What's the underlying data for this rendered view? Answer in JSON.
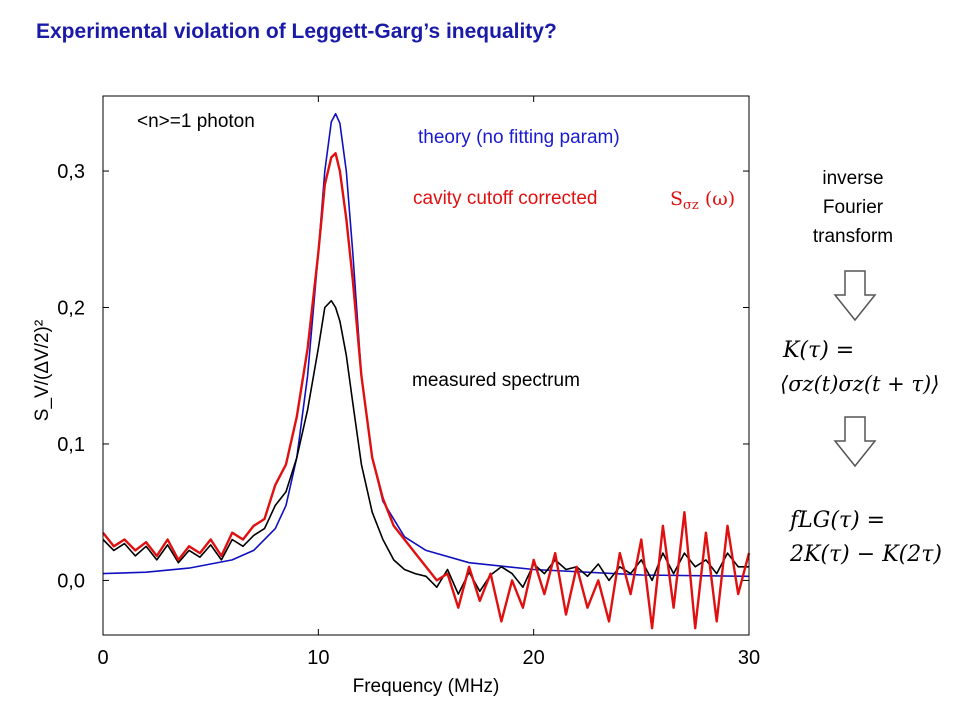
{
  "title": "Experimental violation of Leggett-Garg’s inequality?",
  "annotations": {
    "photon": "<n>=1 photon",
    "theory": "theory (no fitting param)",
    "cavity": "cavity cutoff corrected",
    "measured": "measured spectrum",
    "spectrum_symbol": "S",
    "spectrum_sub": "σz",
    "spectrum_arg": "(ω)"
  },
  "side_text": {
    "line1": "inverse",
    "line2": "Fourier",
    "line3": "transform"
  },
  "formulas": {
    "k_lhs": "K(τ) =",
    "k_rhs": "⟨σz(t)σz(t + τ)⟩",
    "f_lhs": "fLG(τ) =",
    "f_rhs": "2K(τ) − K(2τ)"
  },
  "colors": {
    "title": "#1a1aa8",
    "theory": "#1010c0",
    "cavity": "#e01010",
    "measured": "#000000"
  },
  "chart_data": {
    "type": "line",
    "xlabel": "Frequency (MHz)",
    "ylabel": "S_V/(ΔV/2)²",
    "xlim": [
      0,
      30
    ],
    "ylim": [
      -0.04,
      0.355
    ],
    "xticks": [
      0,
      10,
      20,
      30
    ],
    "yticks": [
      0.0,
      0.1,
      0.2,
      0.3
    ],
    "xtick_labels": [
      "0",
      "10",
      "20",
      "30"
    ],
    "ytick_labels": [
      "0,0",
      "0,1",
      "0,2",
      "0,3"
    ],
    "series": [
      {
        "name": "theory (no fitting param)",
        "color": "#1010c0",
        "x": [
          0,
          2,
          4,
          6,
          7,
          8,
          8.5,
          9,
          9.5,
          10,
          10.3,
          10.6,
          10.8,
          11,
          11.3,
          11.6,
          12,
          12.5,
          13,
          14,
          15,
          17,
          20,
          25,
          30
        ],
        "y": [
          0.005,
          0.006,
          0.009,
          0.015,
          0.022,
          0.038,
          0.055,
          0.09,
          0.15,
          0.24,
          0.3,
          0.336,
          0.342,
          0.335,
          0.3,
          0.24,
          0.15,
          0.09,
          0.058,
          0.032,
          0.022,
          0.013,
          0.008,
          0.004,
          0.003
        ]
      },
      {
        "name": "cavity cutoff corrected",
        "color": "#e01010",
        "x": [
          0,
          0.5,
          1,
          1.5,
          2,
          2.5,
          3,
          3.5,
          4,
          4.5,
          5,
          5.5,
          6,
          6.5,
          7,
          7.5,
          8,
          8.5,
          9,
          9.5,
          10,
          10.3,
          10.6,
          10.8,
          11,
          11.3,
          11.6,
          12,
          12.5,
          13,
          13.5,
          14,
          14.5,
          15,
          15.5,
          16,
          16.5,
          17,
          17.5,
          18,
          18.5,
          19,
          19.5,
          20,
          20.5,
          21,
          21.5,
          22,
          22.5,
          23,
          23.5,
          24,
          24.5,
          25,
          25.5,
          26,
          26.5,
          27,
          27.5,
          28,
          28.5,
          29,
          29.5,
          30
        ],
        "y": [
          0.035,
          0.025,
          0.03,
          0.022,
          0.028,
          0.018,
          0.03,
          0.015,
          0.025,
          0.02,
          0.03,
          0.018,
          0.035,
          0.03,
          0.04,
          0.045,
          0.07,
          0.085,
          0.12,
          0.17,
          0.24,
          0.29,
          0.31,
          0.313,
          0.3,
          0.265,
          0.22,
          0.15,
          0.09,
          0.06,
          0.04,
          0.03,
          0.02,
          0.01,
          0.0,
          0.005,
          -0.02,
          0.01,
          -0.015,
          0.005,
          -0.03,
          0.0,
          -0.02,
          0.015,
          -0.01,
          0.02,
          -0.025,
          0.01,
          -0.02,
          0.0,
          -0.03,
          0.02,
          -0.01,
          0.03,
          -0.035,
          0.04,
          -0.02,
          0.05,
          -0.035,
          0.035,
          -0.03,
          0.04,
          -0.01,
          0.02
        ]
      },
      {
        "name": "measured spectrum",
        "color": "#000000",
        "x": [
          0,
          0.5,
          1,
          1.5,
          2,
          2.5,
          3,
          3.5,
          4,
          4.5,
          5,
          5.5,
          6,
          6.5,
          7,
          7.5,
          8,
          8.5,
          9,
          9.5,
          10,
          10.3,
          10.6,
          10.8,
          11,
          11.3,
          11.6,
          12,
          12.5,
          13,
          13.5,
          14,
          14.5,
          15,
          15.5,
          16,
          16.5,
          17,
          17.5,
          18,
          18.5,
          19,
          19.5,
          20,
          20.5,
          21,
          21.5,
          22,
          22.5,
          23,
          23.5,
          24,
          24.5,
          25,
          25.5,
          26,
          26.5,
          27,
          27.5,
          28,
          28.5,
          29,
          29.5,
          30
        ],
        "y": [
          0.03,
          0.022,
          0.027,
          0.018,
          0.025,
          0.015,
          0.026,
          0.013,
          0.022,
          0.017,
          0.026,
          0.015,
          0.03,
          0.025,
          0.033,
          0.038,
          0.055,
          0.065,
          0.09,
          0.125,
          0.17,
          0.2,
          0.205,
          0.2,
          0.19,
          0.165,
          0.13,
          0.085,
          0.05,
          0.03,
          0.015,
          0.008,
          0.005,
          0.003,
          -0.005,
          0.008,
          -0.01,
          0.006,
          -0.008,
          0.004,
          0.01,
          0.005,
          -0.005,
          0.012,
          0.005,
          0.015,
          0.008,
          0.01,
          0.003,
          0.012,
          0.0,
          0.01,
          0.005,
          0.015,
          0.0,
          0.02,
          0.005,
          0.02,
          0.01,
          0.015,
          0.005,
          0.02,
          0.01,
          0.01
        ]
      }
    ]
  }
}
